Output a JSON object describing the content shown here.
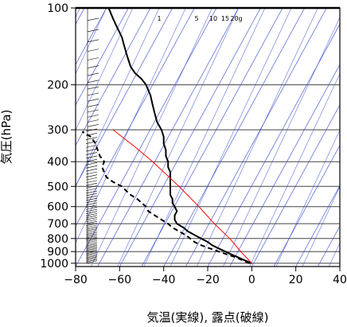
{
  "chart_data": {
    "type": "line",
    "title": "",
    "xlabel": "気温(実線), 露点(破線)",
    "ylabel": "気圧(hPa)",
    "xlim": [
      -80,
      40
    ],
    "ylim": [
      1030,
      100
    ],
    "y_scale": "log",
    "x_ticks": [
      "−80",
      "−60",
      "−40",
      "−20",
      "0",
      "20",
      "40"
    ],
    "y_ticks": [
      "100",
      "200",
      "300",
      "400",
      "500",
      "600",
      "700",
      "800",
      "900",
      "1000"
    ],
    "mixing_ratio_labels": [
      "1",
      "5",
      "10",
      "15",
      "20g"
    ],
    "series": [
      {
        "style": "solid",
        "color": "#000000",
        "points": [
          [
            0,
            1000
          ],
          [
            -3,
            975
          ],
          [
            -6,
            950
          ],
          [
            -9,
            925
          ],
          [
            -12,
            900
          ],
          [
            -15,
            875
          ],
          [
            -18,
            850
          ],
          [
            -20,
            825
          ],
          [
            -23,
            800
          ],
          [
            -26,
            775
          ],
          [
            -29,
            750
          ],
          [
            -31,
            725
          ],
          [
            -34,
            700
          ],
          [
            -35,
            675
          ],
          [
            -35,
            650
          ],
          [
            -34,
            625
          ],
          [
            -35,
            600
          ],
          [
            -36,
            580
          ],
          [
            -36,
            560
          ],
          [
            -37,
            540
          ],
          [
            -37,
            520
          ],
          [
            -37,
            500
          ],
          [
            -37,
            480
          ],
          [
            -37,
            460
          ],
          [
            -37,
            440
          ],
          [
            -38,
            420
          ],
          [
            -38,
            400
          ],
          [
            -39,
            380
          ],
          [
            -39,
            360
          ],
          [
            -40,
            340
          ],
          [
            -40,
            320
          ],
          [
            -41,
            300
          ],
          [
            -43,
            280
          ],
          [
            -44,
            260
          ],
          [
            -45,
            240
          ],
          [
            -46,
            220
          ],
          [
            -48,
            200
          ],
          [
            -50,
            190
          ],
          [
            -53,
            180
          ],
          [
            -55,
            170
          ],
          [
            -56,
            160
          ],
          [
            -57,
            150
          ],
          [
            -58,
            140
          ],
          [
            -59,
            130
          ],
          [
            -61,
            120
          ],
          [
            -63,
            110
          ],
          [
            -65,
            100
          ]
        ]
      },
      {
        "style": "dashed",
        "color": "#000000",
        "points": [
          [
            -1,
            1000
          ],
          [
            -4,
            975
          ],
          [
            -7,
            950
          ],
          [
            -11,
            925
          ],
          [
            -15,
            900
          ],
          [
            -19,
            875
          ],
          [
            -23,
            850
          ],
          [
            -26,
            825
          ],
          [
            -28,
            800
          ],
          [
            -30,
            775
          ],
          [
            -33,
            750
          ],
          [
            -36,
            725
          ],
          [
            -38,
            700
          ],
          [
            -41,
            675
          ],
          [
            -44,
            650
          ],
          [
            -47,
            625
          ],
          [
            -48,
            600
          ],
          [
            -50,
            580
          ],
          [
            -52,
            560
          ],
          [
            -55,
            540
          ],
          [
            -57,
            520
          ],
          [
            -59,
            500
          ],
          [
            -63,
            480
          ],
          [
            -66,
            460
          ],
          [
            -67,
            440
          ],
          [
            -68,
            420
          ],
          [
            -67,
            400
          ],
          [
            -69,
            380
          ],
          [
            -70,
            360
          ],
          [
            -71,
            340
          ],
          [
            -73,
            320
          ],
          [
            -77,
            305
          ]
        ]
      },
      {
        "style": "solid",
        "color": "#ff0000",
        "points": [
          [
            0,
            1000
          ],
          [
            -5,
            900
          ],
          [
            -10,
            800
          ],
          [
            -17,
            700
          ],
          [
            -24,
            600
          ],
          [
            -33,
            500
          ],
          [
            -45,
            400
          ],
          [
            -53,
            350
          ],
          [
            -63,
            300
          ]
        ]
      }
    ],
    "background_lines": {
      "color": "#3344cc",
      "isotherms_from": -190,
      "isotherms_to": 40,
      "isotherm_step": 10
    },
    "grid": true
  }
}
